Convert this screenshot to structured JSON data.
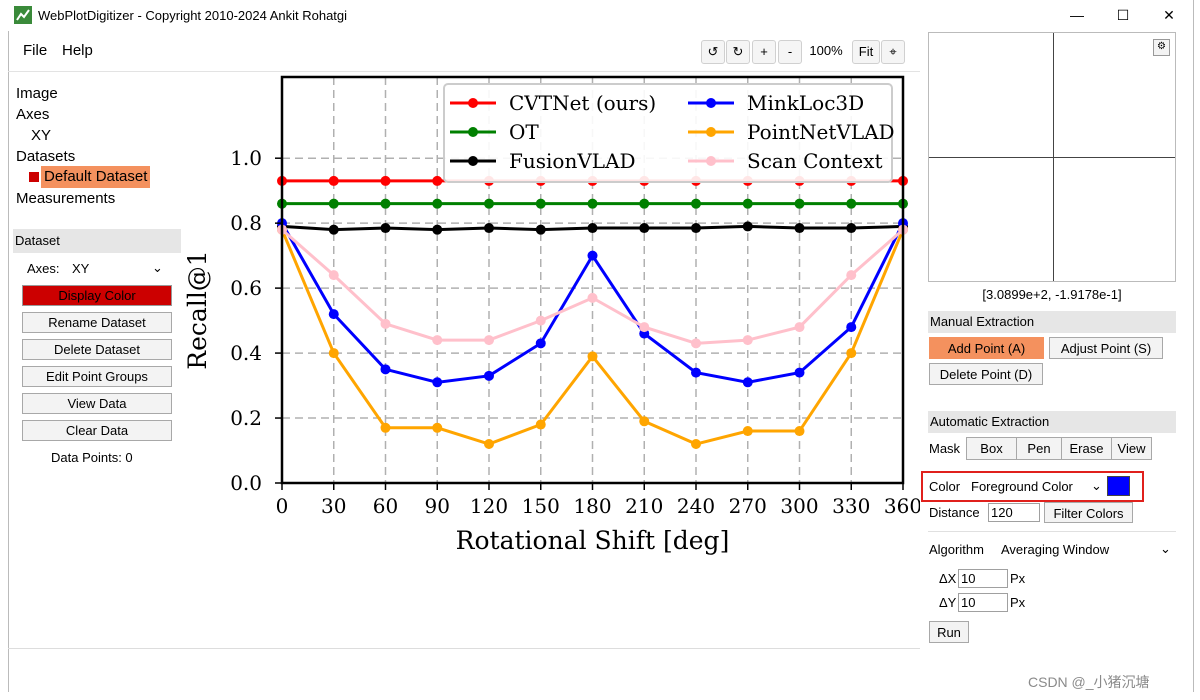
{
  "window": {
    "title": "WebPlotDigitizer - Copyright 2010-2024 Ankit Rohatgi",
    "controls": {
      "minimize": "—",
      "maximize": "☐",
      "close": "✕"
    }
  },
  "menu": {
    "file": "File",
    "help": "Help"
  },
  "zoom": {
    "rotate_ccw": "↺",
    "rotate_cw": "↻",
    "zoom_in": "+",
    "zoom_out": "-",
    "level": "100%",
    "fit": "Fit",
    "crosshair": "⌖"
  },
  "tree": {
    "image": "Image",
    "axes": "Axes",
    "xy": "XY",
    "datasets": "Datasets",
    "default_dataset": "Default Dataset",
    "measurements": "Measurements"
  },
  "dataset_panel": {
    "header": "Dataset",
    "axes_label": "Axes:",
    "axes_value": "XY",
    "display_color": "Display Color",
    "rename": "Rename Dataset",
    "delete": "Delete Dataset",
    "edit_groups": "Edit Point Groups",
    "view_data": "View Data",
    "clear_data": "Clear Data",
    "data_points": "Data Points: 0"
  },
  "right_panel": {
    "cursor_coords": "[3.0899e+2, -1.9178e-1]",
    "manual_header": "Manual Extraction",
    "add_point": "Add Point (A)",
    "adjust_point": "Adjust Point (S)",
    "delete_point": "Delete Point (D)",
    "auto_header": "Automatic Extraction",
    "mask_label": "Mask",
    "mask_box": "Box",
    "mask_pen": "Pen",
    "mask_erase": "Erase",
    "mask_view": "View",
    "color_label": "Color",
    "color_value": "Foreground Color",
    "distance_label": "Distance",
    "distance_value": "120",
    "filter_colors": "Filter Colors",
    "algorithm_label": "Algorithm",
    "algorithm_value": "Averaging Window",
    "dx_label": "ΔX",
    "dx_value": "10",
    "dy_label": "ΔY",
    "dy_value": "10",
    "px": "Px",
    "run": "Run"
  },
  "watermark": "CSDN @_小猪沉塘",
  "colors": {
    "display_color": "#cc0000",
    "active_button": "#f4915e",
    "selected_dataset": "#f4915e",
    "foreground_swatch": "#0000ff",
    "highlight_box": "#e0201c"
  },
  "chart_data": {
    "type": "line",
    "xlabel": "Rotational Shift [deg]",
    "ylabel": "Recall@1",
    "x": [
      0,
      30,
      60,
      90,
      120,
      150,
      180,
      210,
      240,
      270,
      300,
      330,
      360
    ],
    "xlim": [
      0,
      360
    ],
    "ylim": [
      0,
      1.0
    ],
    "yticks": [
      "0.0",
      "0.2",
      "0.4",
      "0.6",
      "0.8",
      "1.0"
    ],
    "grid": true,
    "legend_position": "top",
    "series": [
      {
        "name": "CVTNet (ours)",
        "color": "#ff0000",
        "values": [
          0.93,
          0.93,
          0.93,
          0.93,
          0.93,
          0.93,
          0.93,
          0.93,
          0.93,
          0.93,
          0.93,
          0.93,
          0.93
        ]
      },
      {
        "name": "OT",
        "color": "#008000",
        "values": [
          0.86,
          0.86,
          0.86,
          0.86,
          0.86,
          0.86,
          0.86,
          0.86,
          0.86,
          0.86,
          0.86,
          0.86,
          0.86
        ]
      },
      {
        "name": "FusionVLAD",
        "color": "#000000",
        "values": [
          0.79,
          0.78,
          0.785,
          0.78,
          0.785,
          0.78,
          0.785,
          0.785,
          0.785,
          0.79,
          0.785,
          0.785,
          0.79
        ]
      },
      {
        "name": "MinkLoc3D",
        "color": "#0000ff",
        "values": [
          0.8,
          0.52,
          0.35,
          0.31,
          0.33,
          0.43,
          0.7,
          0.46,
          0.34,
          0.31,
          0.34,
          0.48,
          0.8
        ]
      },
      {
        "name": "PointNetVLAD",
        "color": "#ffa500",
        "values": [
          0.78,
          0.4,
          0.17,
          0.17,
          0.12,
          0.18,
          0.39,
          0.19,
          0.12,
          0.16,
          0.16,
          0.4,
          0.78
        ]
      },
      {
        "name": "Scan Context",
        "color": "#ffc0cb",
        "values": [
          0.78,
          0.64,
          0.49,
          0.44,
          0.44,
          0.5,
          0.57,
          0.48,
          0.43,
          0.44,
          0.48,
          0.64,
          0.78
        ]
      }
    ]
  }
}
